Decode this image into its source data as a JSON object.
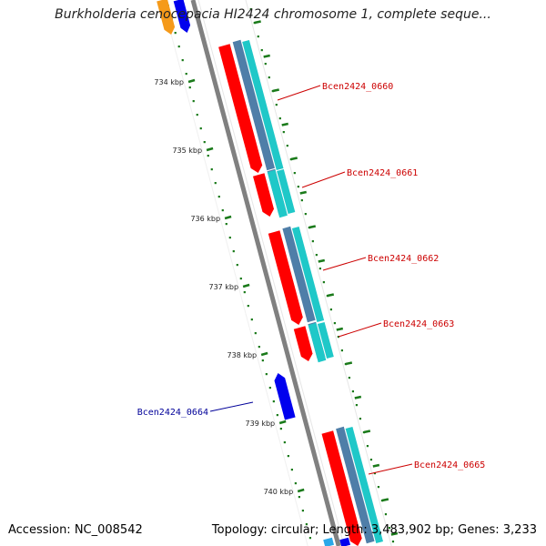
{
  "title": "Burkholderia cenocepacia HI2424 chromosome 1, complete seque...",
  "footer": {
    "accession": "Accession: NC_008542",
    "summary": "Topology: circular; Length: 3,483,902 bp; Genes: 3,233"
  },
  "colors": {
    "cds_forward": "#ff0000",
    "cds_reverse": "#0000ee",
    "gene_track": "#4f7ea8",
    "feature_track": "#1fc8c8",
    "backbone": "#808080",
    "ticks": "#1a7a1a",
    "forward_label": "#cc0000",
    "reverse_label": "#000099",
    "orange_feature": "#f59a1a"
  },
  "ticks": [
    {
      "label": "734 kbp"
    },
    {
      "label": "735 kbp"
    },
    {
      "label": "736 kbp"
    },
    {
      "label": "737 kbp"
    },
    {
      "label": "738 kbp"
    },
    {
      "label": "739 kbp"
    },
    {
      "label": "740 kbp"
    }
  ],
  "genes": [
    {
      "name": "Bcen2424_0660",
      "strand": "forward"
    },
    {
      "name": "Bcen2424_0661",
      "strand": "forward"
    },
    {
      "name": "Bcen2424_0662",
      "strand": "forward"
    },
    {
      "name": "Bcen2424_0663",
      "strand": "forward"
    },
    {
      "name": "Bcen2424_0664",
      "strand": "reverse"
    },
    {
      "name": "Bcen2424_0665",
      "strand": "forward"
    }
  ]
}
